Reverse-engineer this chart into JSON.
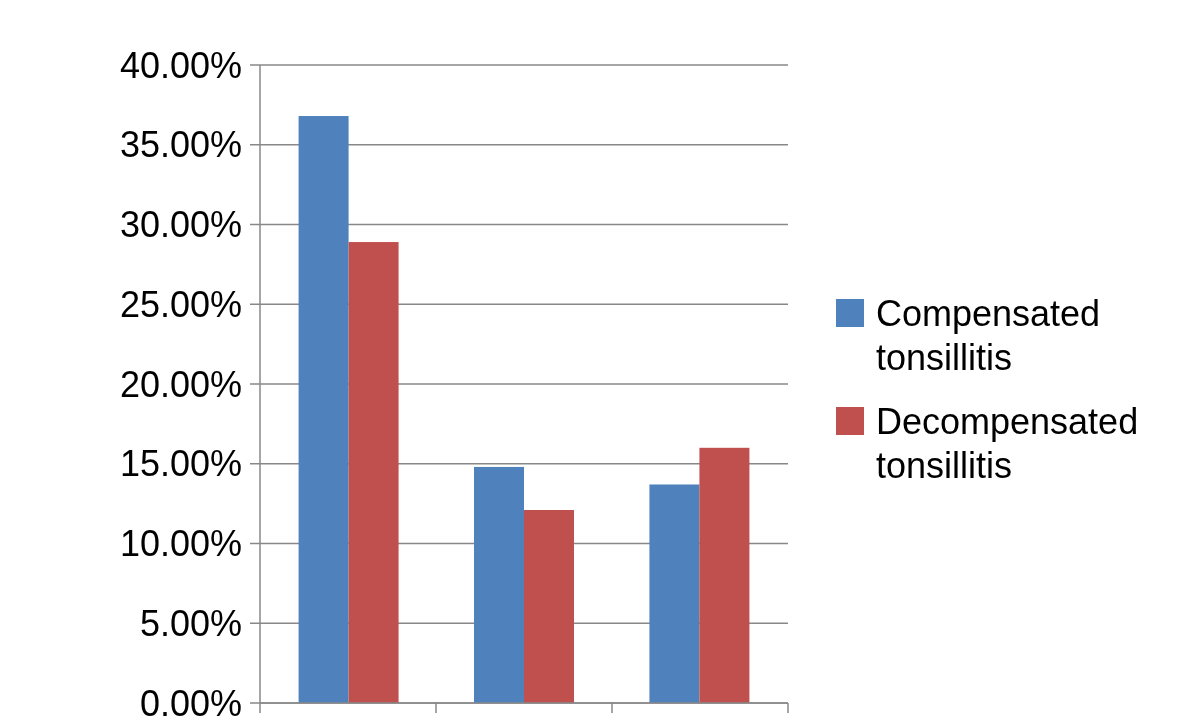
{
  "chart_data": {
    "type": "bar",
    "categories": [
      null,
      null,
      null
    ],
    "series": [
      {
        "name": "Compensated tonsillitis",
        "color": "#4f81bd",
        "values": [
          36.8,
          14.8,
          13.7
        ]
      },
      {
        "name": "Decompensated tonsillitis",
        "color": "#c0504d",
        "values": [
          28.9,
          12.1,
          16.0
        ]
      }
    ],
    "ylim": [
      0,
      40
    ],
    "yticks": [
      {
        "value": 0,
        "label": "0.00%"
      },
      {
        "value": 5,
        "label": "5.00%"
      },
      {
        "value": 10,
        "label": "10.00%"
      },
      {
        "value": 15,
        "label": "15.00%"
      },
      {
        "value": 20,
        "label": "20.00%"
      },
      {
        "value": 25,
        "label": "25.00%"
      },
      {
        "value": 30,
        "label": "30.00%"
      },
      {
        "value": 35,
        "label": "35.00%"
      },
      {
        "value": 40,
        "label": "40.00%"
      }
    ],
    "grid": "y",
    "legend": "right"
  }
}
